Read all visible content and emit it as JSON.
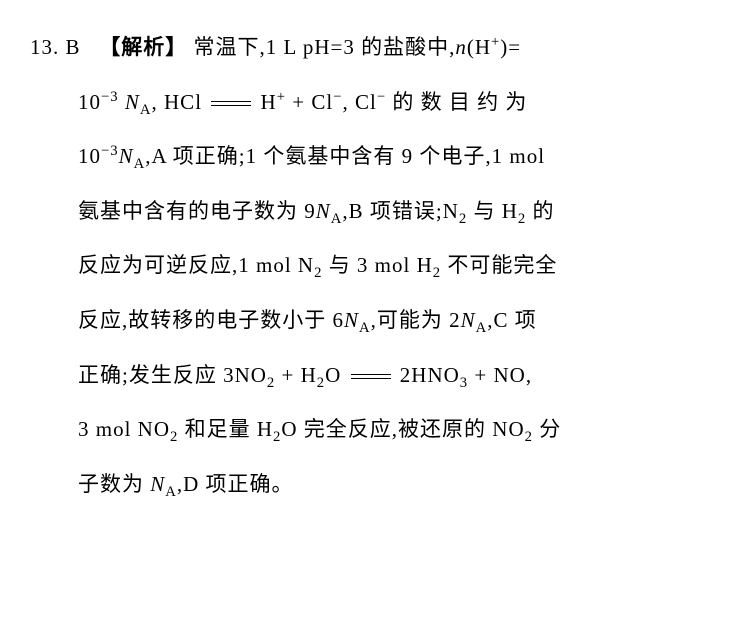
{
  "problem": {
    "number": "13.",
    "answer": "B",
    "analysis_label": "【解析】",
    "text_parts": {
      "p1": "常温下,1 L pH=3 的盐酸中,",
      "nH": "n",
      "p1b": "(H",
      "plus1": "+",
      "p1c": ")=",
      "p2a": "10",
      "exp_neg3a": "−3",
      "space1": " ",
      "NA1": "N",
      "subA1": "A",
      "p2b": ", HCl ",
      "p2c": " H",
      "plus2": "+",
      "p2d": " + Cl",
      "minus1": "−",
      "p2e": ", Cl",
      "minus2": "−",
      "p2f": " 的 数 目 约 为",
      "p3a": "10",
      "exp_neg3b": "−3",
      "NA2": "N",
      "subA2": "A",
      "p3b": ",A 项正确;1 个氨基中含有 9 个电子,1 mol",
      "p4a": "氨基中含有的电子数为 9",
      "NA3": "N",
      "subA3": "A",
      "p4b": ",B 项错误;N",
      "sub2a": "2",
      "p4c": " 与 H",
      "sub2b": "2",
      "p4d": " 的",
      "p5a": "反应为可逆反应,1 mol N",
      "sub2c": "2",
      "p5b": " 与 3 mol H",
      "sub2d": "2",
      "p5c": " 不可能完全",
      "p6a": "反应,故转移的电子数小于 6",
      "NA4": "N",
      "subA4": "A",
      "p6b": ",可能为 2",
      "NA5": "N",
      "subA5": "A",
      "p6c": ",C 项",
      "p7a": "正确;发生反应 3NO",
      "sub2e": "2",
      "p7b": " + H",
      "sub2f": "2",
      "p7c": "O ",
      "p7d": " 2HNO",
      "sub3a": "3",
      "p7e": " + NO,",
      "p8a": "3 mol NO",
      "sub2g": "2",
      "p8b": " 和足量 H",
      "sub2h": "2",
      "p8c": "O 完全反应,被还原的 NO",
      "sub2i": "2",
      "p8d": " 分",
      "p9a": "子数为 ",
      "NA6": "N",
      "subA6": "A",
      "p9b": ",D 项正确。"
    }
  },
  "style": {
    "font_size": 21,
    "line_height": 2.6,
    "text_color": "#000000",
    "background": "#ffffff"
  }
}
